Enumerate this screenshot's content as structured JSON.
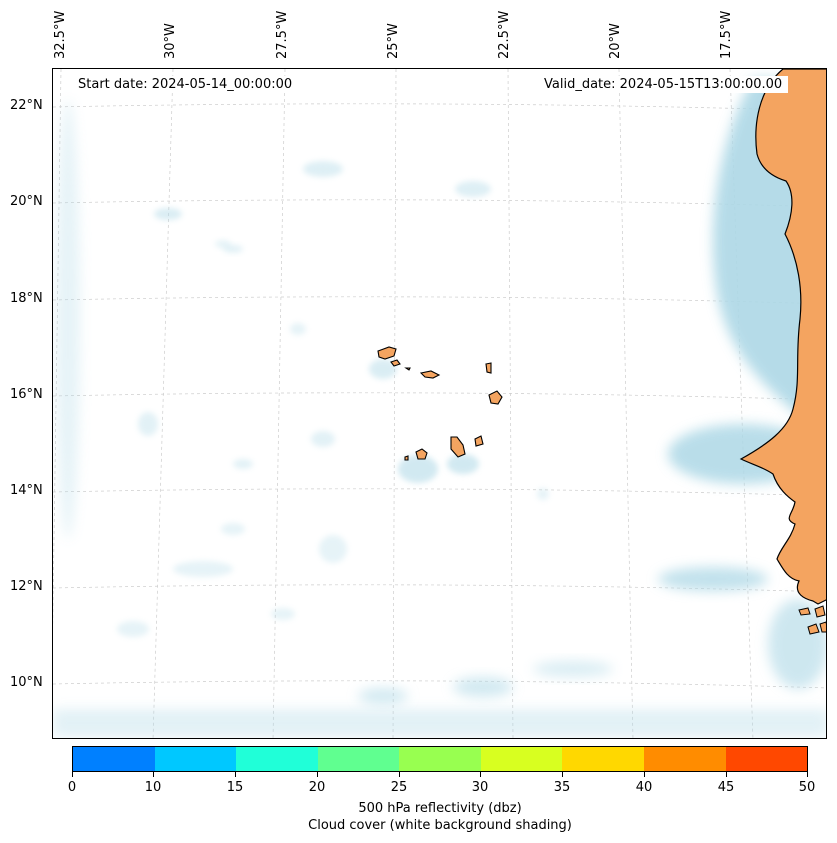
{
  "start_date": "Start date: 2024-05-14_00:00:00",
  "valid_date": "Valid_date: 2024-05-15T13:00:00.00",
  "lon_labels": [
    "32.5°W",
    "30°W",
    "27.5°W",
    "25°W",
    "22.5°W",
    "20°W",
    "17.5°W"
  ],
  "lat_labels": [
    "22°N",
    "20°N",
    "18°N",
    "16°N",
    "14°N",
    "12°N",
    "10°N"
  ],
  "colorbar": {
    "ticks": [
      "0",
      "10",
      "15",
      "20",
      "25",
      "30",
      "35",
      "40",
      "45",
      "50"
    ],
    "colors": [
      "#0080ff",
      "#00c8ff",
      "#20ffd8",
      "#60ff90",
      "#98ff50",
      "#d8ff20",
      "#ffd800",
      "#ff8c00",
      "#ff4800"
    ],
    "caption_line1": "500 hPa reflectivity (dbz)",
    "caption_line2": "Cloud cover (white background shading)"
  },
  "colors": {
    "land": "#f4a460",
    "cloud": "#add8e6",
    "coast": "#000000"
  }
}
